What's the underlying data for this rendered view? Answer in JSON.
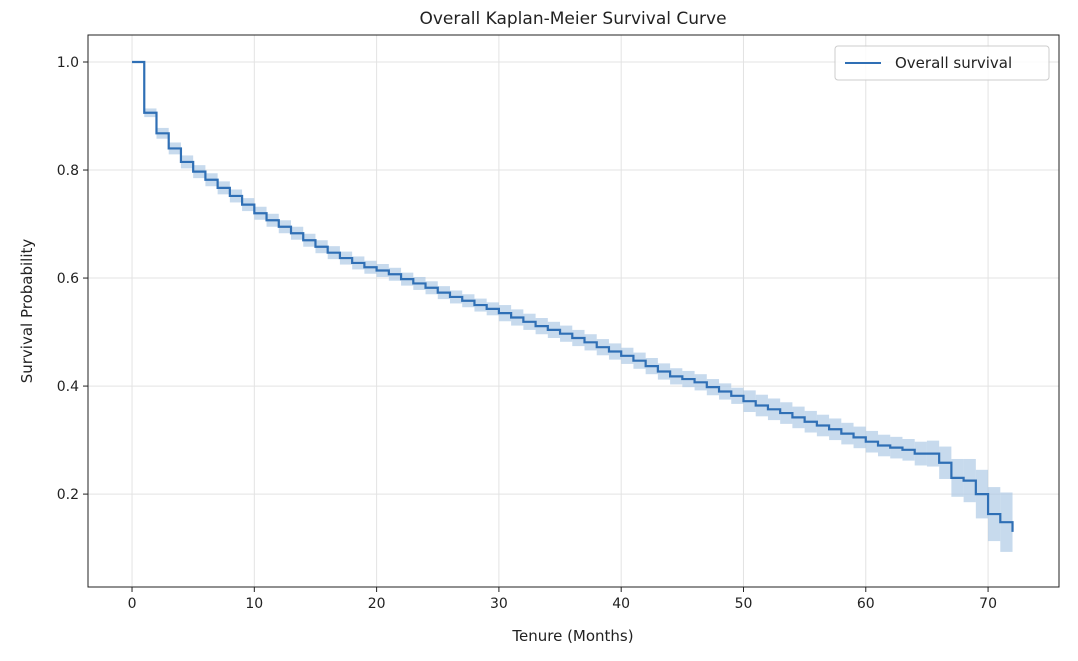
{
  "chart_data": {
    "type": "line",
    "title": "Overall Kaplan-Meier Survival Curve",
    "xlabel": "Tenure (Months)",
    "ylabel": "Survival Probability",
    "xlim": [
      -3.6,
      75.8
    ],
    "ylim": [
      0.028,
      1.05
    ],
    "x_ticks": [
      0,
      10,
      20,
      30,
      40,
      50,
      60,
      70
    ],
    "x_tick_labels": [
      "0",
      "10",
      "20",
      "30",
      "40",
      "50",
      "60",
      "70"
    ],
    "y_ticks": [
      0.2,
      0.4,
      0.6,
      0.8,
      1.0
    ],
    "y_tick_labels": [
      "0.2",
      "0.4",
      "0.6",
      "0.8",
      "1.0"
    ],
    "grid": true,
    "legend": {
      "placement": "top-right",
      "entries": [
        "Overall survival"
      ]
    },
    "colors": {
      "line": "#2f6fb5",
      "band": "#a9c6e4"
    },
    "series": [
      {
        "name": "Overall survival",
        "step": "post",
        "x": [
          0,
          1,
          2,
          3,
          4,
          5,
          6,
          7,
          8,
          9,
          10,
          11,
          12,
          13,
          14,
          15,
          16,
          17,
          18,
          19,
          20,
          21,
          22,
          23,
          24,
          25,
          26,
          27,
          28,
          29,
          30,
          31,
          32,
          33,
          34,
          35,
          36,
          37,
          38,
          39,
          40,
          41,
          42,
          43,
          44,
          45,
          46,
          47,
          48,
          49,
          50,
          51,
          52,
          53,
          54,
          55,
          56,
          57,
          58,
          59,
          60,
          61,
          62,
          63,
          64,
          65,
          66,
          67,
          68,
          69,
          70,
          71,
          72
        ],
        "values": [
          1.0,
          0.906,
          0.868,
          0.84,
          0.815,
          0.797,
          0.782,
          0.767,
          0.752,
          0.736,
          0.72,
          0.707,
          0.695,
          0.683,
          0.67,
          0.658,
          0.647,
          0.637,
          0.628,
          0.62,
          0.614,
          0.607,
          0.598,
          0.59,
          0.582,
          0.573,
          0.565,
          0.558,
          0.55,
          0.543,
          0.535,
          0.527,
          0.519,
          0.511,
          0.504,
          0.497,
          0.489,
          0.481,
          0.472,
          0.464,
          0.456,
          0.447,
          0.437,
          0.427,
          0.418,
          0.413,
          0.407,
          0.398,
          0.39,
          0.382,
          0.372,
          0.364,
          0.357,
          0.35,
          0.342,
          0.334,
          0.327,
          0.32,
          0.312,
          0.305,
          0.297,
          0.29,
          0.286,
          0.282,
          0.275,
          0.275,
          0.258,
          0.23,
          0.225,
          0.2,
          0.163,
          0.148,
          0.13
        ],
        "ci_halfwidth": [
          0,
          0.008,
          0.01,
          0.011,
          0.012,
          0.012,
          0.012,
          0.012,
          0.012,
          0.012,
          0.012,
          0.012,
          0.012,
          0.012,
          0.012,
          0.012,
          0.012,
          0.012,
          0.012,
          0.012,
          0.012,
          0.012,
          0.012,
          0.012,
          0.012,
          0.012,
          0.012,
          0.012,
          0.012,
          0.012,
          0.015,
          0.015,
          0.015,
          0.015,
          0.015,
          0.015,
          0.015,
          0.015,
          0.015,
          0.015,
          0.015,
          0.015,
          0.015,
          0.015,
          0.015,
          0.015,
          0.015,
          0.015,
          0.015,
          0.015,
          0.02,
          0.02,
          0.02,
          0.02,
          0.02,
          0.02,
          0.02,
          0.02,
          0.02,
          0.02,
          0.02,
          0.02,
          0.02,
          0.02,
          0.022,
          0.024,
          0.03,
          0.035,
          0.04,
          0.045,
          0.05,
          0.055,
          0.06
        ]
      }
    ]
  }
}
